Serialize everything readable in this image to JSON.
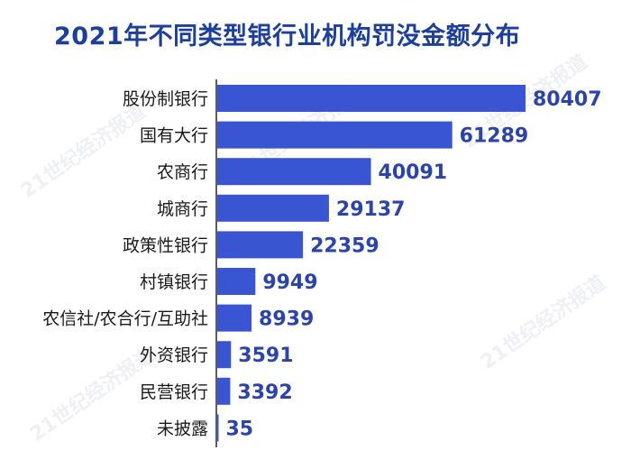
{
  "watermark_text": "21世纪经济报道",
  "chart_data": {
    "type": "bar",
    "orientation": "horizontal",
    "title": "2021年不同类型银行业机构罚没金额分布",
    "categories": [
      "股份制银行",
      "国有大行",
      "农商行",
      "城商行",
      "政策性银行",
      "村镇银行",
      "农信社/农合行/互助社",
      "外资银行",
      "民营银行",
      "未披露"
    ],
    "values": [
      80407,
      61289,
      40091,
      29137,
      22359,
      9949,
      8939,
      3591,
      3392,
      35
    ],
    "xlim": [
      0,
      80407
    ],
    "grid": false,
    "legend": "none",
    "bar_color": "#3a55d1",
    "value_color": "#2c44a8",
    "title_color": "#1c3f99"
  }
}
